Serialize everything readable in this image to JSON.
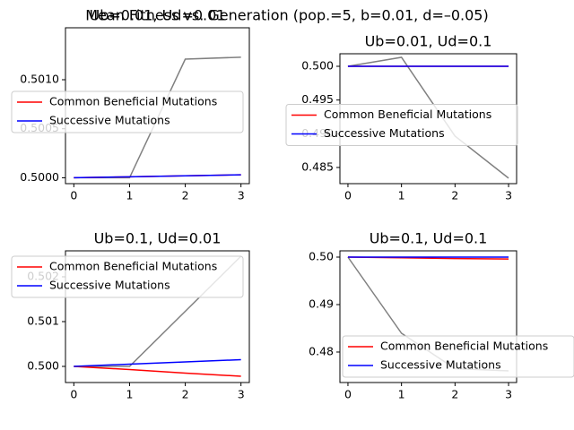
{
  "title": "Mean Fitness vs. Generation (pop.=5, b=0.01, d=–0.05)",
  "chart_data": [
    {
      "type": "line",
      "title": "Ub=0.01, Ud=0.01",
      "x": [
        0,
        1,
        2,
        3
      ],
      "xlim": [
        -0.15,
        3.15
      ],
      "xticks": [
        0,
        1,
        2,
        3
      ],
      "ylim": [
        0.49994,
        0.50153
      ],
      "yticks": [
        {
          "value": 0.5,
          "label": "0.5000"
        },
        {
          "value": 0.5005,
          "label": "0.5005"
        },
        {
          "value": 0.501,
          "label": "0.5010"
        }
      ],
      "legend": "center left",
      "series": [
        {
          "color": "gray",
          "values": [
            0.5,
            0.5,
            0.50121,
            0.50123
          ]
        },
        {
          "name": "Common Beneficial Mutations",
          "color": "red",
          "values": [
            0.5,
            0.50001,
            0.50002,
            0.50003
          ]
        },
        {
          "name": "Successive Mutations",
          "color": "blue",
          "values": [
            0.5,
            0.50001,
            0.50002,
            0.50003
          ]
        }
      ]
    },
    {
      "type": "line",
      "title": "Ub=0.01, Ud=0.1",
      "x": [
        0,
        1,
        2,
        3
      ],
      "xlim": [
        -0.15,
        3.15
      ],
      "xticks": [
        0,
        1,
        2,
        3
      ],
      "ylim": [
        0.4826,
        0.50186
      ],
      "yticks": [
        {
          "value": 0.485,
          "label": "0.485"
        },
        {
          "value": 0.49,
          "label": "0.490"
        },
        {
          "value": 0.495,
          "label": "0.495"
        },
        {
          "value": 0.5,
          "label": "0.500"
        }
      ],
      "legend": "center left",
      "series": [
        {
          "color": "gray",
          "values": [
            0.5,
            0.50133,
            0.48965,
            0.48341
          ]
        },
        {
          "name": "Common Beneficial Mutations",
          "color": "red",
          "values": [
            0.5,
            0.5,
            0.5,
            0.5
          ]
        },
        {
          "name": "Successive Mutations",
          "color": "blue",
          "values": [
            0.5,
            0.5,
            0.5,
            0.5
          ]
        }
      ]
    },
    {
      "type": "line",
      "title": "Ub=0.1, Ud=0.01",
      "x": [
        0,
        1,
        2,
        3
      ],
      "xlim": [
        -0.15,
        3.15
      ],
      "xticks": [
        0,
        1,
        2,
        3
      ],
      "ylim": [
        0.49964,
        0.50258
      ],
      "yticks": [
        {
          "value": 0.5,
          "label": "0.500"
        },
        {
          "value": 0.501,
          "label": "0.501"
        },
        {
          "value": 0.502,
          "label": "0.502"
        }
      ],
      "legend": "upper left",
      "series": [
        {
          "color": "gray",
          "values": [
            0.5,
            0.5,
            0.50123,
            0.50246
          ]
        },
        {
          "name": "Common Beneficial Mutations",
          "color": "red",
          "values": [
            0.5,
            0.49993,
            0.49985,
            0.49978
          ]
        },
        {
          "name": "Successive Mutations",
          "color": "blue",
          "values": [
            0.5,
            0.50005,
            0.5001,
            0.50015
          ]
        }
      ]
    },
    {
      "type": "line",
      "title": "Ub=0.1, Ud=0.1",
      "x": [
        0,
        1,
        2,
        3
      ],
      "xlim": [
        -0.15,
        3.15
      ],
      "xticks": [
        0,
        1,
        2,
        3
      ],
      "ylim": [
        0.47358,
        0.50132
      ],
      "yticks": [
        {
          "value": 0.48,
          "label": "0.48"
        },
        {
          "value": 0.49,
          "label": "0.49"
        },
        {
          "value": 0.5,
          "label": "0.50"
        }
      ],
      "legend": "lower right",
      "series": [
        {
          "color": "gray",
          "values": [
            0.5,
            0.48396,
            0.4765,
            0.47604
          ]
        },
        {
          "name": "Common Beneficial Mutations",
          "color": "red",
          "values": [
            0.5,
            0.49985,
            0.4997,
            0.4996
          ]
        },
        {
          "name": "Successive Mutations",
          "color": "blue",
          "values": [
            0.5,
            0.5,
            0.5,
            0.5
          ]
        }
      ]
    }
  ]
}
